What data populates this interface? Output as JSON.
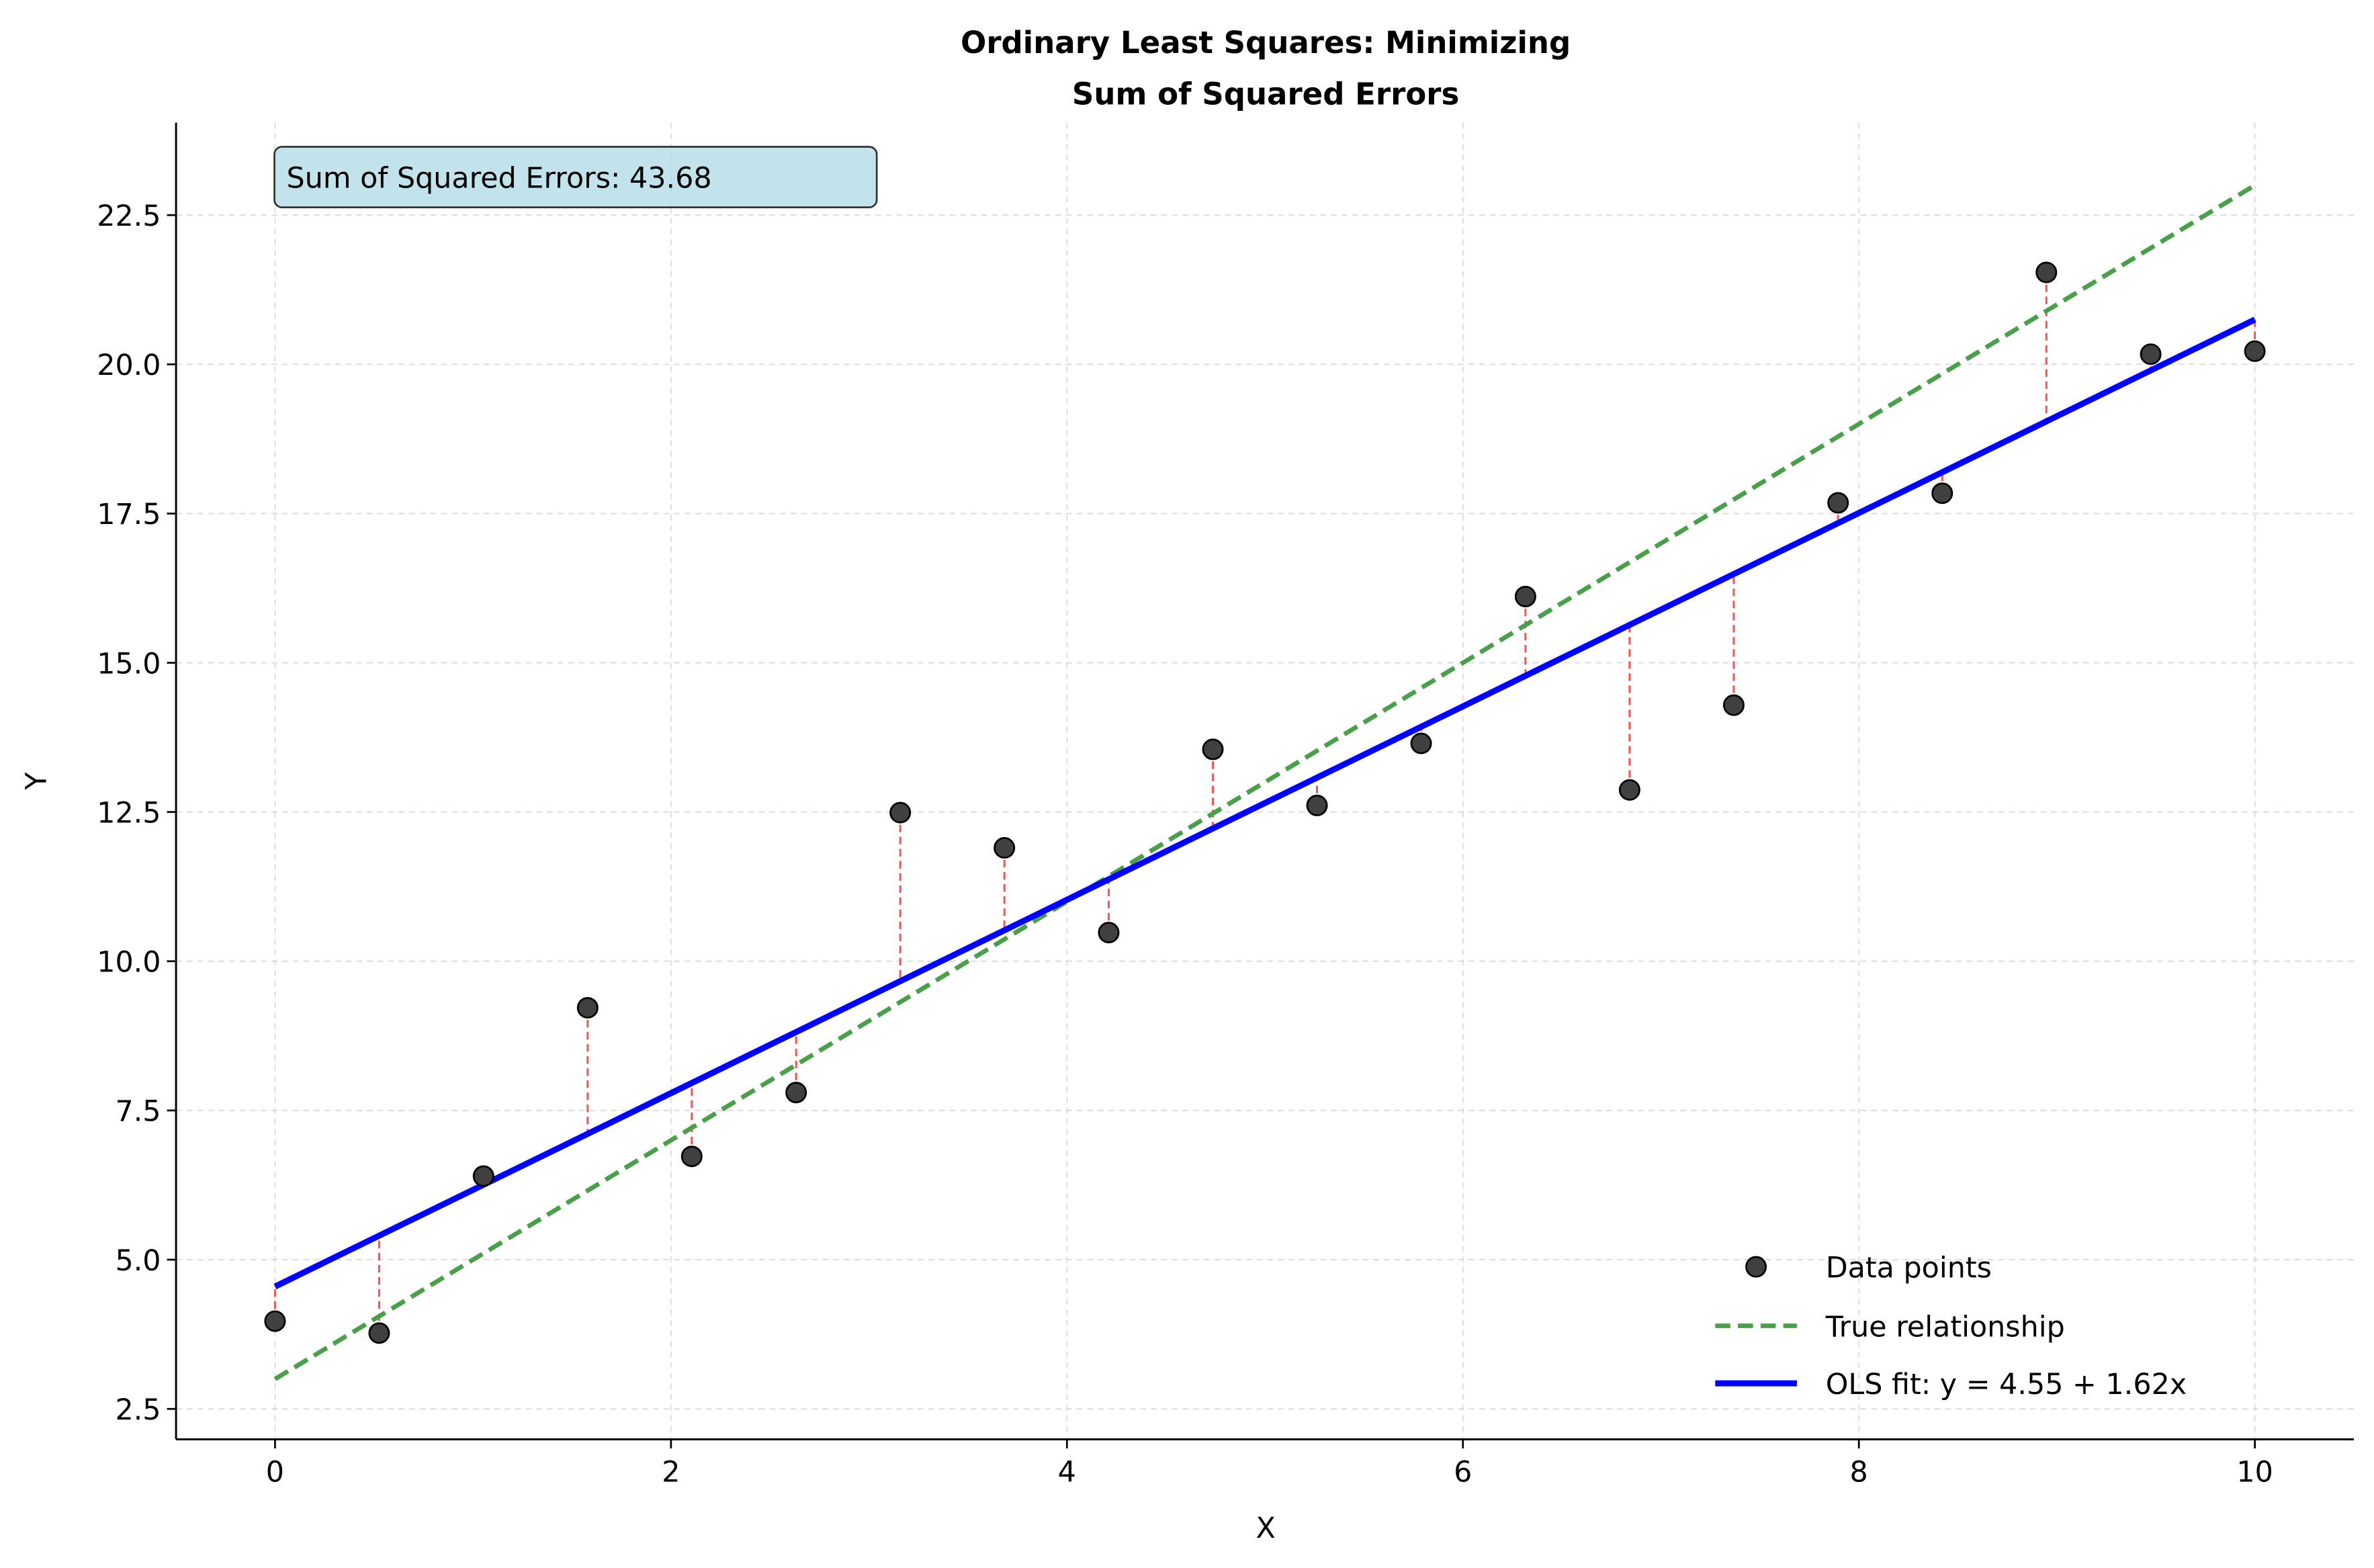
{
  "chart_data": {
    "type": "scatter",
    "title": "Ordinary Least Squares: Minimizing\nSum of Squared Errors",
    "title_lines": [
      "Ordinary Least Squares: Minimizing",
      "Sum of Squared Errors"
    ],
    "xlabel": "X",
    "ylabel": "Y",
    "xlim": [
      -0.5,
      10.5
    ],
    "ylim": [
      1.99,
      24.05
    ],
    "xticks": [
      0,
      2,
      4,
      6,
      8,
      10
    ],
    "xtick_labels": [
      "0",
      "2",
      "4",
      "6",
      "8",
      "10"
    ],
    "yticks": [
      2.5,
      5.0,
      7.5,
      10.0,
      12.5,
      15.0,
      17.5,
      20.0,
      22.5
    ],
    "ytick_labels": [
      "2.5",
      "5.0",
      "7.5",
      "10.0",
      "12.5",
      "15.0",
      "17.5",
      "20.0",
      "22.5"
    ],
    "grid": true,
    "legend_position": "lower-right",
    "annotation": "Sum of Squared Errors: 43.68",
    "series": [
      {
        "name": "Data points",
        "kind": "scatter",
        "color": "#404040",
        "x": [
          0,
          0.526,
          1.053,
          1.579,
          2.105,
          2.632,
          3.158,
          3.684,
          4.211,
          4.737,
          5.263,
          5.789,
          6.316,
          6.842,
          7.368,
          7.895,
          8.421,
          8.947,
          9.474,
          10
        ],
        "y": [
          3.97,
          3.77,
          6.4,
          9.22,
          6.73,
          7.8,
          12.49,
          11.9,
          10.48,
          13.55,
          12.61,
          13.65,
          16.11,
          12.87,
          14.29,
          17.68,
          17.84,
          21.54,
          20.17,
          20.22
        ]
      },
      {
        "name": "True relationship",
        "kind": "line",
        "style": "dashed",
        "color": "#4a9f4a",
        "intercept": 3,
        "slope": 2
      },
      {
        "name": "OLS fit: y = 4.55 + 1.62x",
        "kind": "line",
        "style": "solid",
        "color": "#0000ff",
        "intercept": 4.55,
        "slope": 1.62
      }
    ],
    "residual_color": "#ff4d4d"
  }
}
